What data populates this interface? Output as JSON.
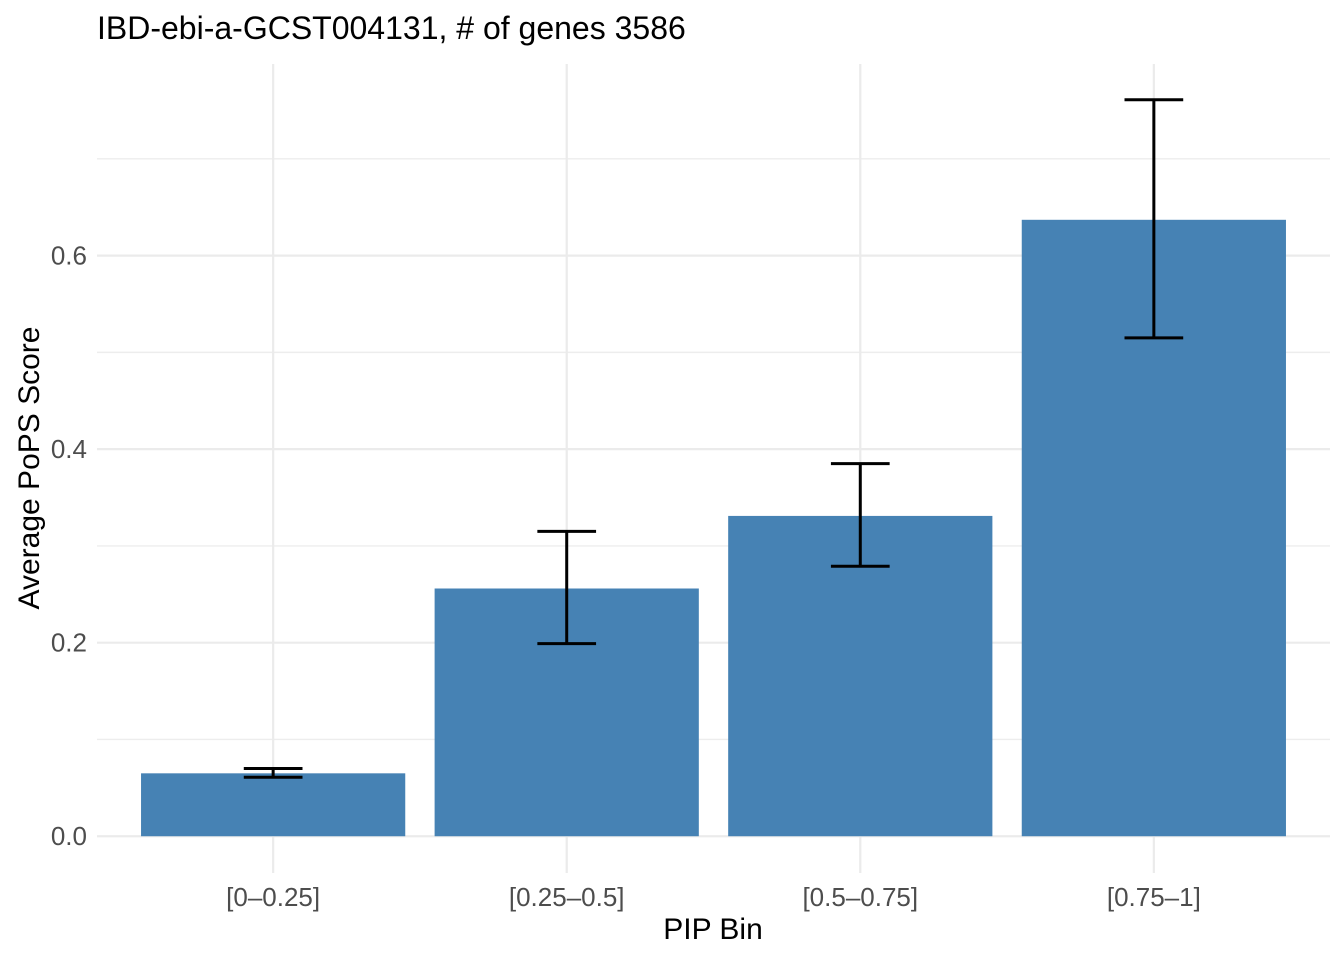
{
  "chart_data": {
    "type": "bar",
    "title": "IBD-ebi-a-GCST004131, # of genes 3586",
    "xlabel": "PIP Bin",
    "ylabel": "Average PoPS Score",
    "categories": [
      "[0–0.25]",
      "[0.25–0.5]",
      "[0.5–0.75]",
      "[0.75–1]"
    ],
    "values": [
      0.065,
      0.256,
      0.331,
      0.637
    ],
    "error_low": [
      0.061,
      0.199,
      0.279,
      0.515
    ],
    "error_high": [
      0.07,
      0.315,
      0.385,
      0.761
    ],
    "y_ticks": [
      0.0,
      0.2,
      0.4,
      0.6
    ],
    "y_tick_labels": [
      "0.0",
      "0.2",
      "0.4",
      "0.6"
    ],
    "y_minor_ticks": [
      0.1,
      0.3,
      0.5,
      0.7
    ],
    "ylim": [
      -0.038,
      0.798
    ],
    "grid": true,
    "legend": false,
    "colors": {
      "bar_fill": "#4682B4",
      "error_bar": "#000000",
      "grid_major": "#EBEBEB",
      "grid_minor": "#EDEDED",
      "tick_label": "#4D4D4D",
      "title_text": "#000000"
    }
  }
}
